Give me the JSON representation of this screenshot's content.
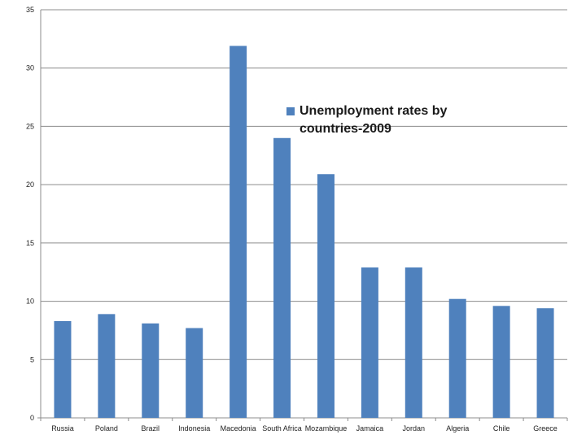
{
  "chart_data": {
    "type": "bar",
    "title": "",
    "xlabel": "",
    "ylabel": "",
    "ylim": [
      0,
      35
    ],
    "yticks": [
      "0",
      "5",
      "10",
      "15",
      "20",
      "25",
      "30",
      "35"
    ],
    "categories": [
      "Russia",
      "Poland",
      "Brazil",
      "Indonesia",
      "Macedonia",
      "South Africa",
      "Mozambique",
      "Jamaica",
      "Jordan",
      "Algeria",
      "Chile",
      "Greece"
    ],
    "series": [
      {
        "name": "Unemployment rates by countries-2009",
        "color": "#4f81bd",
        "values": [
          8.3,
          8.9,
          8.1,
          7.7,
          31.9,
          24.0,
          20.9,
          12.9,
          12.9,
          10.2,
          9.6,
          9.4
        ]
      }
    ],
    "grid": true,
    "legend_position": "top-right"
  }
}
